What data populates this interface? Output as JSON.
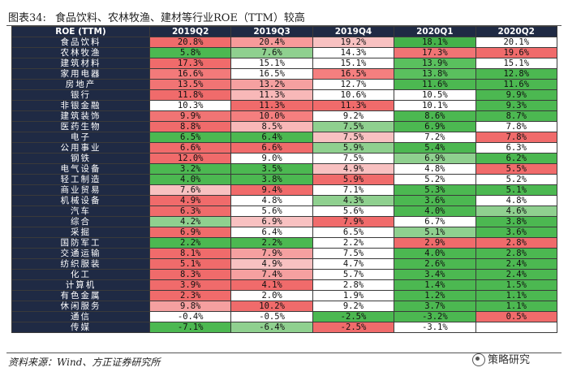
{
  "header": {
    "figure_no": "图表34:",
    "figure_title": "食品饮料、农林牧渔、建材等行业ROE（TTM）较高"
  },
  "table": {
    "corner": "ROE (TTM)",
    "columns": [
      "2019Q2",
      "2019Q3",
      "2019Q4",
      "2020Q1",
      "2020Q2"
    ],
    "rows": [
      {
        "name": "食品饮料",
        "values": [
          "20.8%",
          "20.4%",
          "19.2%",
          "18.1%",
          "20.1%"
        ],
        "colors": [
          "#f06b6b",
          "#f79a9a",
          "#f8c1c1",
          "#45b24a",
          "#ffffff"
        ]
      },
      {
        "name": "农林牧渔",
        "values": [
          "5.8%",
          "7.6%",
          "14.3%",
          "17.3%",
          "19.6%"
        ],
        "colors": [
          "#4cb851",
          "#8fd08f",
          "#ffffff",
          "#f17474",
          "#f06b6b"
        ]
      },
      {
        "name": "建筑材料",
        "values": [
          "17.3%",
          "15.1%",
          "15.1%",
          "13.9%",
          "15.1%"
        ],
        "colors": [
          "#f06b6b",
          "#ffffff",
          "#ffffff",
          "#5ac05e",
          "#ffffff"
        ]
      },
      {
        "name": "家用电器",
        "values": [
          "16.6%",
          "16.5%",
          "16.5%",
          "13.8%",
          "12.8%"
        ],
        "colors": [
          "#f37a7a",
          "#ffffff",
          "#f57f7f",
          "#5ac05e",
          "#4cb851"
        ]
      },
      {
        "name": "房地产",
        "values": [
          "13.5%",
          "13.2%",
          "12.7%",
          "11.6%",
          "11.6%"
        ],
        "colors": [
          "#f17474",
          "#f5a0a0",
          "#ffffff",
          "#4cb851",
          "#4cb851"
        ]
      },
      {
        "name": "银行",
        "values": [
          "11.8%",
          "11.3%",
          "10.6%",
          "10.5%",
          "9.9%"
        ],
        "colors": [
          "#f06b6b",
          "#f8b8b8",
          "#ffffff",
          "#ffffff",
          "#4cb851"
        ]
      },
      {
        "name": "非银金融",
        "values": [
          "10.3%",
          "11.3%",
          "11.3%",
          "10.1%",
          "9.3%"
        ],
        "colors": [
          "#ffffff",
          "#f06b6b",
          "#f06b6b",
          "#ffffff",
          "#4cb851"
        ]
      },
      {
        "name": "建筑装饰",
        "values": [
          "9.9%",
          "10.0%",
          "9.2%",
          "8.6%",
          "8.7%"
        ],
        "colors": [
          "#f17474",
          "#f57f7f",
          "#ffffff",
          "#4cb851",
          "#4cb851"
        ]
      },
      {
        "name": "医药生物",
        "values": [
          "8.8%",
          "8.5%",
          "7.5%",
          "6.9%",
          "7.8%"
        ],
        "colors": [
          "#f06b6b",
          "#f8b8b8",
          "#8fd08f",
          "#4cb851",
          "#ffffff"
        ]
      },
      {
        "name": "电子",
        "values": [
          "6.5%",
          "6.4%",
          "7.5%",
          "7.2%",
          "7.8%"
        ],
        "colors": [
          "#4cb851",
          "#4cb851",
          "#f8c1c1",
          "#ffffff",
          "#f06b6b"
        ]
      },
      {
        "name": "公用事业",
        "values": [
          "6.6%",
          "6.6%",
          "5.9%",
          "5.4%",
          "6.3%"
        ],
        "colors": [
          "#f06b6b",
          "#f06b6b",
          "#8fd08f",
          "#4cb851",
          "#ffffff"
        ]
      },
      {
        "name": "钢铁",
        "values": [
          "12.0%",
          "9.0%",
          "7.5%",
          "6.9%",
          "6.2%"
        ],
        "colors": [
          "#f06b6b",
          "#ffffff",
          "#ffffff",
          "#8fd08f",
          "#4cb851"
        ]
      },
      {
        "name": "电气设备",
        "values": [
          "3.2%",
          "3.5%",
          "4.9%",
          "4.8%",
          "5.5%"
        ],
        "colors": [
          "#4cb851",
          "#4cb851",
          "#f8c1c1",
          "#ffffff",
          "#f06b6b"
        ]
      },
      {
        "name": "轻工制造",
        "values": [
          "4.0%",
          "3.8%",
          "5.9%",
          "5.2%",
          "5.2%"
        ],
        "colors": [
          "#4cb851",
          "#4cb851",
          "#f06b6b",
          "#ffffff",
          "#ffffff"
        ]
      },
      {
        "name": "商业贸易",
        "values": [
          "7.6%",
          "9.4%",
          "7.1%",
          "5.3%",
          "5.1%"
        ],
        "colors": [
          "#f8c1c1",
          "#f06b6b",
          "#ffffff",
          "#4cb851",
          "#4cb851"
        ]
      },
      {
        "name": "机械设备",
        "values": [
          "4.9%",
          "4.8%",
          "4.3%",
          "3.6%",
          "4.8%"
        ],
        "colors": [
          "#f06b6b",
          "#ffffff",
          "#8fd08f",
          "#4cb851",
          "#ffffff"
        ]
      },
      {
        "name": "汽车",
        "values": [
          "6.3%",
          "5.6%",
          "5.6%",
          "4.0%",
          "4.6%"
        ],
        "colors": [
          "#f06b6b",
          "#ffffff",
          "#ffffff",
          "#4cb851",
          "#8fd08f"
        ]
      },
      {
        "name": "综合",
        "values": [
          "4.2%",
          "6.9%",
          "7.9%",
          "6.7%",
          "3.8%"
        ],
        "colors": [
          "#8fd08f",
          "#f8c1c1",
          "#f06b6b",
          "#ffffff",
          "#4cb851"
        ]
      },
      {
        "name": "采掘",
        "values": [
          "6.9%",
          "6.4%",
          "6.5%",
          "5.1%",
          "3.6%"
        ],
        "colors": [
          "#f06b6b",
          "#ffffff",
          "#ffffff",
          "#8fd08f",
          "#4cb851"
        ]
      },
      {
        "name": "国防军工",
        "values": [
          "2.2%",
          "2.2%",
          "2.2%",
          "2.9%",
          "2.8%"
        ],
        "colors": [
          "#4cb851",
          "#4cb851",
          "#ffffff",
          "#f06b6b",
          "#f06b6b"
        ]
      },
      {
        "name": "交通运输",
        "values": [
          "8.1%",
          "7.9%",
          "7.5%",
          "4.0%",
          "2.8%"
        ],
        "colors": [
          "#f06b6b",
          "#f5a0a0",
          "#ffffff",
          "#4cb851",
          "#4cb851"
        ]
      },
      {
        "name": "纺织服装",
        "values": [
          "5.1%",
          "4.9%",
          "4.7%",
          "2.6%",
          "2.4%"
        ],
        "colors": [
          "#f06b6b",
          "#f8c1c1",
          "#ffffff",
          "#4cb851",
          "#4cb851"
        ]
      },
      {
        "name": "化工",
        "values": [
          "8.3%",
          "7.4%",
          "5.7%",
          "3.4%",
          "2.4%"
        ],
        "colors": [
          "#f06b6b",
          "#f5a0a0",
          "#ffffff",
          "#4cb851",
          "#4cb851"
        ]
      },
      {
        "name": "计算机",
        "values": [
          "3.9%",
          "4.1%",
          "2.8%",
          "1.4%",
          "1.5%"
        ],
        "colors": [
          "#f06b6b",
          "#f06b6b",
          "#ffffff",
          "#4cb851",
          "#4cb851"
        ]
      },
      {
        "name": "有色金属",
        "values": [
          "2.3%",
          "2.0%",
          "1.9%",
          "1.2%",
          "1.1%"
        ],
        "colors": [
          "#f06b6b",
          "#ffffff",
          "#ffffff",
          "#4cb851",
          "#4cb851"
        ]
      },
      {
        "name": "休闲服务",
        "values": [
          "9.8%",
          "10.2%",
          "9.2%",
          "3.7%",
          "1.1%"
        ],
        "colors": [
          "#f5a0a0",
          "#f06b6b",
          "#ffffff",
          "#4cb851",
          "#4cb851"
        ]
      },
      {
        "name": "通信",
        "values": [
          "-0.4%",
          "-0.5%",
          "-2.5%",
          "-3.2%",
          "0.5%"
        ],
        "colors": [
          "#ffffff",
          "#ffffff",
          "#4cb851",
          "#4cb851",
          "#f06b6b"
        ]
      },
      {
        "name": "传媒",
        "values": [
          "-7.1%",
          "-6.4%",
          "-2.5%",
          "-3.1%",
          ""
        ],
        "colors": [
          "#4cb851",
          "#8fd08f",
          "#f06b6b",
          "#ffffff",
          "#ffffff"
        ]
      }
    ]
  },
  "footer": {
    "source": "资料来源：Wind、方正证券研究所",
    "watermark": "策略研究"
  }
}
